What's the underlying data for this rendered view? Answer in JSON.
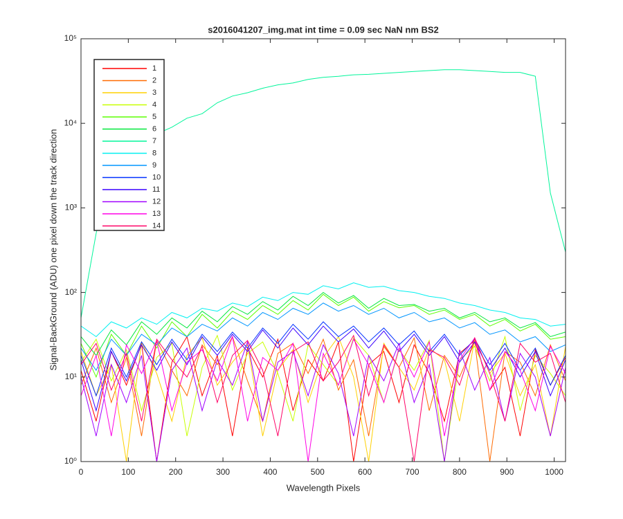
{
  "chart_data": {
    "type": "line",
    "title": "s2016041207_img.mat int time = 0.09 sec  NaN nm BS2",
    "x_label": "Wavelength Pixels",
    "y_label": "Signal-BackGround (ADU) one pixel down the track direction",
    "y_scale": "log",
    "legend_position": "upper-left",
    "xlim": [
      0,
      1024
    ],
    "xticks": [
      0,
      100,
      200,
      300,
      400,
      500,
      600,
      700,
      800,
      900,
      1000
    ],
    "ylim": [
      1,
      100000
    ],
    "yticks": [
      {
        "value": 1,
        "label": "10⁰"
      },
      {
        "value": 10,
        "label": "10¹"
      },
      {
        "value": 100,
        "label": "10²"
      },
      {
        "value": 1000,
        "label": "10³"
      },
      {
        "value": 10000,
        "label": "10⁴"
      },
      {
        "value": 100000,
        "label": "10⁵"
      }
    ],
    "x": [
      0,
      32,
      64,
      96,
      128,
      160,
      192,
      224,
      256,
      288,
      320,
      352,
      384,
      416,
      448,
      480,
      512,
      544,
      576,
      608,
      640,
      672,
      704,
      736,
      768,
      800,
      832,
      864,
      896,
      928,
      960,
      992,
      1024
    ],
    "series": [
      {
        "name": "1",
        "color": "#ff0000",
        "values": [
          12,
          3,
          20,
          8,
          25,
          1,
          15,
          30,
          6,
          18,
          2,
          22,
          10,
          28,
          4,
          16,
          9,
          26,
          1,
          14,
          20,
          5,
          24,
          11,
          3,
          19,
          27,
          7,
          13,
          2,
          21,
          8,
          17
        ]
      },
      {
        "name": "2",
        "color": "#ff6a00",
        "values": [
          8,
          22,
          5,
          17,
          2,
          27,
          12,
          6,
          24,
          14,
          30,
          9,
          3,
          19,
          25,
          11,
          28,
          7,
          16,
          2,
          23,
          13,
          29,
          4,
          18,
          10,
          26,
          1,
          20,
          15,
          6,
          24,
          9
        ]
      },
      {
        "name": "3",
        "color": "#ffd000",
        "values": [
          20,
          6,
          14,
          1,
          26,
          11,
          3,
          18,
          29,
          8,
          15,
          24,
          2,
          12,
          21,
          5,
          17,
          30,
          10,
          1,
          25,
          13,
          7,
          22,
          16,
          3,
          28,
          11,
          19,
          6,
          14,
          2,
          23
        ]
      },
      {
        "name": "4",
        "color": "#c8ff00",
        "values": [
          15,
          28,
          9,
          21,
          4,
          17,
          25,
          2,
          13,
          31,
          7,
          19,
          26,
          11,
          3,
          24,
          14,
          8,
          29,
          18,
          5,
          21,
          12,
          27,
          1,
          16,
          23,
          9,
          30,
          4,
          18,
          11,
          6
        ]
      },
      {
        "name": "5",
        "color": "#5cff00",
        "values": [
          25,
          10,
          32,
          18,
          40,
          22,
          45,
          30,
          55,
          38,
          60,
          48,
          70,
          55,
          80,
          62,
          95,
          70,
          88,
          60,
          78,
          66,
          70,
          55,
          62,
          48,
          55,
          40,
          48,
          35,
          42,
          28,
          30
        ]
      },
      {
        "name": "6",
        "color": "#00e83a",
        "values": [
          30,
          18,
          36,
          24,
          45,
          32,
          50,
          38,
          60,
          45,
          68,
          55,
          78,
          62,
          90,
          70,
          100,
          75,
          92,
          65,
          85,
          70,
          72,
          60,
          65,
          50,
          58,
          45,
          50,
          38,
          44,
          30,
          34
        ]
      },
      {
        "name": "7",
        "color": "#00f59a",
        "values": [
          50,
          500,
          3200,
          5000,
          6000,
          7500,
          9000,
          11500,
          13000,
          17500,
          21000,
          23000,
          26000,
          28500,
          30000,
          33000,
          35000,
          36000,
          37500,
          38000,
          39000,
          40000,
          41000,
          42000,
          43000,
          43000,
          42000,
          41000,
          40000,
          40000,
          36000,
          1500,
          300
        ]
      },
      {
        "name": "8",
        "color": "#00f0f0",
        "values": [
          40,
          30,
          45,
          38,
          50,
          42,
          58,
          50,
          65,
          60,
          75,
          68,
          88,
          80,
          100,
          95,
          120,
          110,
          130,
          115,
          118,
          105,
          100,
          90,
          85,
          75,
          70,
          62,
          58,
          50,
          48,
          40,
          42
        ]
      },
      {
        "name": "9",
        "color": "#0095ff",
        "values": [
          22,
          12,
          28,
          18,
          32,
          24,
          38,
          30,
          42,
          35,
          50,
          40,
          58,
          48,
          65,
          55,
          75,
          60,
          70,
          55,
          65,
          50,
          58,
          45,
          50,
          38,
          44,
          32,
          36,
          26,
          30,
          20,
          24
        ]
      },
      {
        "name": "10",
        "color": "#0030ff",
        "values": [
          18,
          6,
          22,
          10,
          26,
          14,
          28,
          16,
          32,
          20,
          34,
          22,
          38,
          25,
          42,
          28,
          45,
          30,
          40,
          26,
          38,
          24,
          35,
          20,
          32,
          18,
          28,
          14,
          25,
          12,
          22,
          8,
          18
        ]
      },
      {
        "name": "11",
        "color": "#3a00ff",
        "values": [
          16,
          4,
          20,
          9,
          24,
          12,
          26,
          14,
          30,
          18,
          32,
          20,
          36,
          22,
          38,
          24,
          40,
          26,
          37,
          22,
          35,
          20,
          32,
          18,
          30,
          15,
          26,
          12,
          22,
          10,
          20,
          6,
          16
        ]
      },
      {
        "name": "12",
        "color": "#a000ff",
        "values": [
          10,
          2,
          14,
          5,
          18,
          1,
          12,
          22,
          4,
          16,
          8,
          26,
          3,
          15,
          20,
          6,
          24,
          11,
          2,
          18,
          9,
          25,
          5,
          14,
          1,
          21,
          7,
          17,
          3,
          19,
          10,
          2,
          13
        ]
      },
      {
        "name": "13",
        "color": "#ff00e6",
        "values": [
          6,
          18,
          2,
          24,
          11,
          27,
          4,
          15,
          21,
          9,
          30,
          3,
          17,
          12,
          25,
          1,
          19,
          8,
          28,
          14,
          5,
          22,
          10,
          26,
          2,
          16,
          29,
          7,
          20,
          12,
          4,
          23,
          11
        ]
      },
      {
        "name": "14",
        "color": "#ff0066",
        "values": [
          14,
          25,
          7,
          19,
          3,
          28,
          16,
          10,
          23,
          5,
          18,
          27,
          12,
          2,
          20,
          26,
          9,
          15,
          31,
          6,
          24,
          13,
          1,
          21,
          17,
          8,
          29,
          11,
          3,
          25,
          15,
          19,
          5
        ]
      }
    ]
  }
}
